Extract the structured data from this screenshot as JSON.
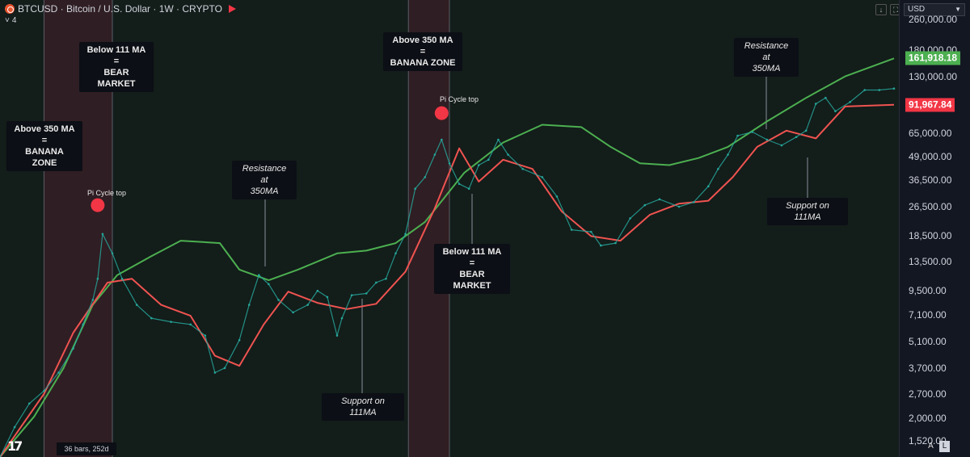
{
  "header": {
    "title": "BTCUSD · Bitcoin / U.S. Dollar · 1W · CRYPTO",
    "collapse_count": "4"
  },
  "currency": "USD",
  "bars_info": "36 bars, 252d",
  "scale_buttons": [
    "A",
    "L"
  ],
  "colors": {
    "background": "#131d1a",
    "highlight_band": "#3a1f27",
    "ma350": "#4caf50",
    "ma111": "#f0504a",
    "candle_up": "#26a69a",
    "candle_down": "#ef5350",
    "pi_dot": "#f23645",
    "axis_bg": "#131722"
  },
  "price_tags": [
    {
      "label": "161,918.18",
      "value": 161918.18,
      "color": "#4caf50"
    },
    {
      "label": "91,967.84",
      "value": 91967.84,
      "color": "#f23645"
    }
  ],
  "annotations": [
    {
      "id": "a1",
      "text": "Above 350 MA =\nBANANA ZONE",
      "style": "bold"
    },
    {
      "id": "a2",
      "text": "Below 111 MA =\nBEAR MARKET",
      "style": "bold"
    },
    {
      "id": "a3",
      "text": "Resistance at\n350MA",
      "style": "italic"
    },
    {
      "id": "a4",
      "text": "Support on 111MA",
      "style": "italic"
    },
    {
      "id": "a5",
      "text": "Above 350 MA =\nBANANA ZONE",
      "style": "bold"
    },
    {
      "id": "a6",
      "text": "Below 111 MA =\nBEAR MARKET",
      "style": "bold"
    },
    {
      "id": "a7",
      "text": "Resistance at\n350MA",
      "style": "italic"
    },
    {
      "id": "a8",
      "text": "Support on 111MA",
      "style": "italic"
    }
  ],
  "pi_labels": [
    "Pi Cycle top",
    "Pi Cycle top"
  ],
  "chart_data": {
    "type": "line",
    "title": "BTCUSD · Bitcoin / U.S. Dollar · 1W · CRYPTO",
    "xlabel": "",
    "ylabel": "",
    "y_scale": "log",
    "ylim": [
      1250,
      330000
    ],
    "x_range": [
      2016.75,
      2025.95
    ],
    "grid": false,
    "y_ticks": [
      {
        "label": "260,000.00",
        "value": 260000
      },
      {
        "label": "180,000.00",
        "value": 180000
      },
      {
        "label": "130,000.00",
        "value": 130000
      },
      {
        "label": "65,000.00",
        "value": 65000
      },
      {
        "label": "49,000.00",
        "value": 49000
      },
      {
        "label": "36,500.00",
        "value": 36500
      },
      {
        "label": "26,500.00",
        "value": 26500
      },
      {
        "label": "18,500.00",
        "value": 18500
      },
      {
        "label": "13,500.00",
        "value": 13500
      },
      {
        "label": "9,500.00",
        "value": 9500
      },
      {
        "label": "7,100.00",
        "value": 7100
      },
      {
        "label": "5,100.00",
        "value": 5100
      },
      {
        "label": "3,700.00",
        "value": 3700
      },
      {
        "label": "2,700.00",
        "value": 2700
      },
      {
        "label": "2,000.00",
        "value": 2000
      },
      {
        "label": "1,520.00",
        "value": 1520
      }
    ],
    "bands": [
      {
        "x0": 2017.2,
        "x1": 2017.9
      },
      {
        "x0": 2020.93,
        "x1": 2021.35
      }
    ],
    "pi_cycle_tops": [
      {
        "x": 2017.75,
        "y": 27000
      },
      {
        "x": 2021.27,
        "y": 83000
      }
    ],
    "series": [
      {
        "name": "",
        "color": "#4caf50",
        "x": [
          2016.75,
          2017.1,
          2017.4,
          2017.7,
          2017.95,
          2018.3,
          2018.6,
          2019.0,
          2019.2,
          2019.5,
          2019.8,
          2020.2,
          2020.5,
          2020.8,
          2021.1,
          2021.5,
          2021.9,
          2022.3,
          2022.7,
          2023.0,
          2023.3,
          2023.6,
          2023.9,
          2024.2,
          2024.6,
          2025.0,
          2025.4,
          2025.9
        ],
        "y": [
          1250,
          2050,
          3700,
          8000,
          11500,
          14500,
          17500,
          17000,
          12300,
          10800,
          12300,
          15000,
          15500,
          17000,
          22000,
          40000,
          58000,
          72000,
          70000,
          55000,
          45000,
          44000,
          48000,
          55000,
          75000,
          100000,
          130000,
          161918
        ]
      },
      {
        "name": "",
        "color": "#ef5350",
        "x": [
          2016.75,
          2017.2,
          2017.5,
          2017.85,
          2018.1,
          2018.4,
          2018.7,
          2018.95,
          2019.2,
          2019.45,
          2019.7,
          2020.0,
          2020.3,
          2020.6,
          2020.9,
          2021.2,
          2021.45,
          2021.65,
          2021.9,
          2022.2,
          2022.5,
          2022.8,
          2023.1,
          2023.4,
          2023.7,
          2024.0,
          2024.25,
          2024.5,
          2024.8,
          2025.1,
          2025.4,
          2025.9
        ],
        "y": [
          1250,
          2700,
          5700,
          10500,
          11000,
          8000,
          7000,
          4300,
          3800,
          6300,
          9400,
          8200,
          7600,
          8100,
          12000,
          26000,
          54000,
          36000,
          47000,
          42000,
          25000,
          18500,
          17500,
          24000,
          27500,
          28500,
          38000,
          55000,
          67000,
          61000,
          90000,
          92000
        ]
      },
      {
        "name": "",
        "color": "#26a69a",
        "x": [
          2016.75,
          2016.9,
          2017.05,
          2017.2,
          2017.35,
          2017.5,
          2017.6,
          2017.7,
          2017.75,
          2017.8,
          2017.9,
          2018.0,
          2018.15,
          2018.3,
          2018.5,
          2018.7,
          2018.85,
          2018.95,
          2019.05,
          2019.2,
          2019.3,
          2019.4,
          2019.5,
          2019.6,
          2019.75,
          2019.9,
          2020.0,
          2020.1,
          2020.2,
          2020.25,
          2020.35,
          2020.5,
          2020.6,
          2020.7,
          2020.8,
          2020.9,
          2021.0,
          2021.1,
          2021.2,
          2021.27,
          2021.35,
          2021.45,
          2021.55,
          2021.65,
          2021.75,
          2021.85,
          2021.95,
          2022.1,
          2022.3,
          2022.45,
          2022.6,
          2022.8,
          2022.9,
          2023.05,
          2023.2,
          2023.35,
          2023.5,
          2023.7,
          2023.85,
          2024.0,
          2024.1,
          2024.2,
          2024.3,
          2024.45,
          2024.6,
          2024.75,
          2024.9,
          2025.0,
          2025.1,
          2025.2,
          2025.3,
          2025.45,
          2025.6,
          2025.75,
          2025.9
        ],
        "y": [
          1250,
          1800,
          2400,
          2800,
          3500,
          4700,
          6300,
          8500,
          11000,
          19000,
          15000,
          11000,
          8000,
          6800,
          6500,
          6300,
          5500,
          3500,
          3700,
          5200,
          8000,
          11500,
          10300,
          8500,
          7300,
          8000,
          9500,
          8800,
          5500,
          6800,
          9000,
          9200,
          10500,
          11000,
          15000,
          19000,
          33000,
          38000,
          50000,
          60000,
          45000,
          35000,
          33000,
          44000,
          47000,
          60000,
          50000,
          42000,
          38000,
          30000,
          20000,
          19500,
          16500,
          17000,
          23000,
          27000,
          29000,
          26500,
          28000,
          34000,
          42000,
          50000,
          63000,
          66000,
          60000,
          56000,
          62000,
          67000,
          93000,
          100000,
          85000,
          95000,
          110000,
          110000,
          112000
        ]
      }
    ]
  }
}
